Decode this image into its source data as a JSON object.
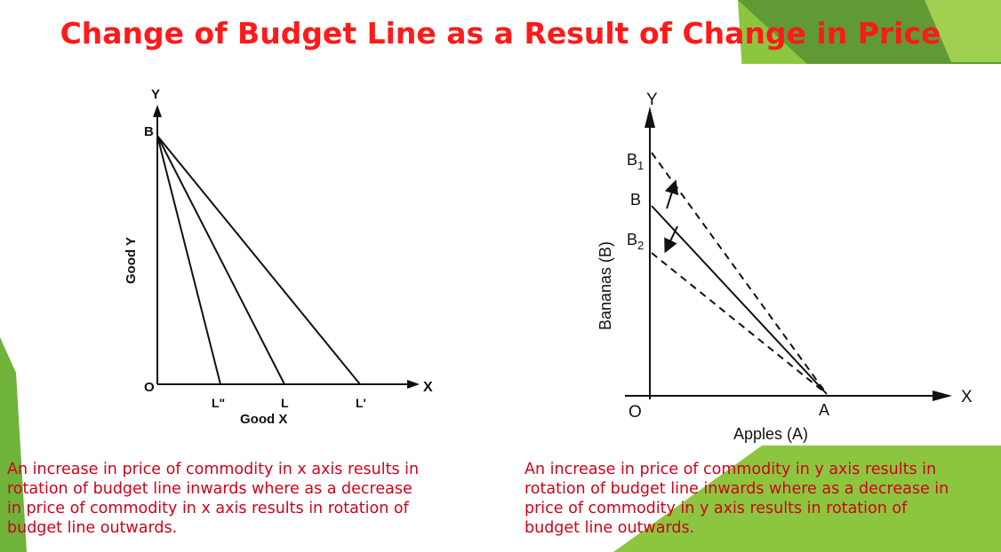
{
  "title": "Change of Budget Line as a Result of Change in Price",
  "left_diagram": {
    "y_axis": "Y",
    "x_axis": "X",
    "origin": "O",
    "point_b": "B",
    "y_label": "Good Y",
    "x_label": "Good X",
    "l_double": "L\"",
    "l": "L",
    "l_prime": "L'"
  },
  "right_diagram": {
    "y_axis": "Y",
    "x_axis": "X",
    "origin": "O",
    "b1_base": "B",
    "b1_sub": "1",
    "b": "B",
    "b2_base": "B",
    "b2_sub": "2",
    "a": "A",
    "y_label": "Bananas (B)",
    "x_label": "Apples (A)"
  },
  "captions": {
    "left": [
      "An increase in price of commodity in x axis results in",
      "rotation of budget line inwards where as a decrease",
      "in price of commodity in x axis results in rotation of",
      "budget line outwards."
    ],
    "right": [
      "An increase in price of commodity in y axis results in",
      "rotation of budget line inwards where as a decrease in",
      "price of commodity in y axis results in rotation of",
      "budget line outwards."
    ]
  },
  "colors": {
    "title": "#ff1a1a",
    "caption": "#d0021b",
    "accent_green": "#7cc242",
    "dark_green": "#4e8f2a"
  }
}
